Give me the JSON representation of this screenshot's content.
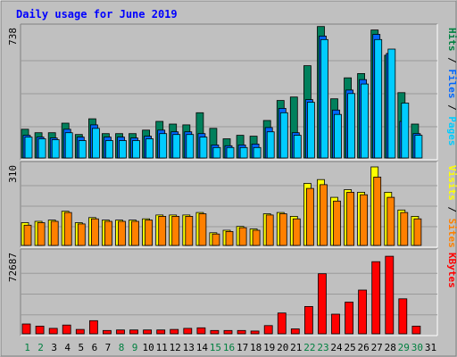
{
  "chart_data": {
    "type": "bar",
    "title": "Daily usage for June 2019",
    "categories": [
      "1",
      "2",
      "3",
      "4",
      "5",
      "6",
      "7",
      "8",
      "9",
      "10",
      "11",
      "12",
      "13",
      "14",
      "15",
      "16",
      "17",
      "18",
      "19",
      "20",
      "21",
      "22",
      "23",
      "24",
      "25",
      "26",
      "27",
      "28",
      "29",
      "30",
      "31"
    ],
    "weekend_days": [
      "1",
      "2",
      "8",
      "9",
      "15",
      "16",
      "22",
      "23",
      "29",
      "30"
    ],
    "panels": [
      {
        "name": "pages-files-hits",
        "max_label": "738",
        "ymax": 738,
        "legend": [
          {
            "text": "Pages",
            "color": "#00ccff"
          },
          {
            "text": " / ",
            "color": "#000000"
          },
          {
            "text": "Files",
            "color": "#0066ff"
          },
          {
            "text": " / ",
            "color": "#000000"
          },
          {
            "text": "Hits",
            "color": "#008040"
          }
        ],
        "series": [
          {
            "name": "Hits",
            "color": "#00805c",
            "values": [
              165,
              145,
              145,
              200,
              135,
              225,
              140,
              140,
              140,
              160,
              210,
              195,
              190,
              260,
              170,
              110,
              130,
              125,
              215,
              330,
              350,
              530,
              755,
              340,
              460,
              485,
              735,
              590,
              375,
              195,
              0
            ]
          },
          {
            "name": "Files",
            "color": "#0066ff",
            "values": [
              130,
              120,
              115,
              165,
              120,
              190,
              120,
              120,
              115,
              125,
              160,
              150,
              150,
              140,
              75,
              70,
              75,
              80,
              175,
              285,
              145,
              335,
              700,
              275,
              390,
              450,
              710,
              600,
              210,
              140,
              0
            ]
          },
          {
            "name": "Pages",
            "color": "#00ccff",
            "values": [
              120,
              110,
              105,
              145,
              100,
              170,
              100,
              100,
              100,
              110,
              140,
              135,
              135,
              120,
              60,
              60,
              60,
              60,
              150,
              260,
              130,
              320,
              680,
              250,
              370,
              425,
              680,
              625,
              315,
              130,
              0
            ]
          }
        ]
      },
      {
        "name": "sites-visits",
        "max_label": "310",
        "ymax": 310,
        "legend": [
          {
            "text": "Sites",
            "color": "#ff8000"
          },
          {
            "text": " / ",
            "color": "#000000"
          },
          {
            "text": "Visits",
            "color": "#ffff00"
          }
        ],
        "series": [
          {
            "name": "Visits",
            "color": "#ffff00",
            "values": [
              90,
              95,
              100,
              135,
              90,
              110,
              100,
              100,
              100,
              105,
              120,
              120,
              120,
              130,
              50,
              60,
              75,
              65,
              125,
              130,
              115,
              245,
              260,
              190,
              220,
              210,
              310,
              210,
              140,
              115,
              0
            ]
          },
          {
            "name": "Sites",
            "color": "#ff8000",
            "values": [
              80,
              90,
              95,
              130,
              85,
              105,
              95,
              95,
              95,
              100,
              115,
              115,
              115,
              125,
              45,
              55,
              70,
              60,
              120,
              125,
              105,
              225,
              240,
              175,
              210,
              200,
              270,
              190,
              130,
              105,
              0
            ]
          }
        ]
      },
      {
        "name": "kbytes",
        "max_label": "72687",
        "ymax": 72687,
        "legend": [
          {
            "text": "KBytes",
            "color": "#ff0000"
          }
        ],
        "series": [
          {
            "name": "KBytes",
            "color": "#ff0000",
            "values": [
              9000,
              7000,
              5000,
              8000,
              4000,
              12000,
              3000,
              3500,
              3500,
              3500,
              3500,
              4000,
              5000,
              5500,
              3000,
              3000,
              3000,
              2500,
              7500,
              19000,
              4500,
              25000,
              55000,
              18000,
              29000,
              40000,
              66000,
              71000,
              32000,
              7000,
              0
            ]
          }
        ]
      }
    ]
  }
}
